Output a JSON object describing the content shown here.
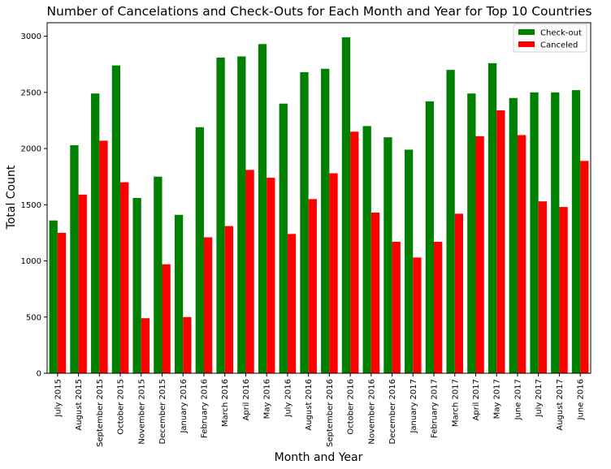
{
  "chart_data": {
    "type": "bar",
    "title": "Number of Cancelations and Check-Outs  for Each Month and Year for Top 10 Countries",
    "xlabel": "Month and Year",
    "ylabel": "Total Count",
    "ylim": [
      0,
      3120
    ],
    "yticks": [
      0,
      500,
      1000,
      1500,
      2000,
      2500,
      3000
    ],
    "grid": false,
    "legend_position": "top-right",
    "categories": [
      "July  2015",
      "August  2015",
      "September  2015",
      "October  2015",
      "November  2015",
      "December  2015",
      "January  2016",
      "February  2016",
      "March  2016",
      "April  2016",
      "May  2016",
      "July  2016",
      "August  2016",
      "September  2016",
      "October  2016",
      "November  2016",
      "December  2016",
      "January  2017",
      "February  2017",
      "March  2017",
      "April  2017",
      "May  2017",
      "June  2017",
      "July  2017",
      "August  2017",
      "June  2016"
    ],
    "series": [
      {
        "name": "Check-out",
        "color": "#008000",
        "values": [
          1360,
          2030,
          2490,
          2740,
          1560,
          1750,
          1410,
          2190,
          2810,
          2820,
          2930,
          2400,
          2680,
          2710,
          2990,
          2200,
          2100,
          1990,
          2420,
          2700,
          2490,
          2760,
          2450,
          2500,
          2500,
          2520
        ]
      },
      {
        "name": "Canceled",
        "color": "#ff0000",
        "values": [
          1250,
          1590,
          2070,
          1700,
          490,
          970,
          500,
          1210,
          1310,
          1810,
          1740,
          1240,
          1550,
          1780,
          2150,
          1430,
          1170,
          1030,
          1170,
          1420,
          2110,
          2340,
          2120,
          1530,
          1480,
          1890
        ]
      }
    ]
  }
}
